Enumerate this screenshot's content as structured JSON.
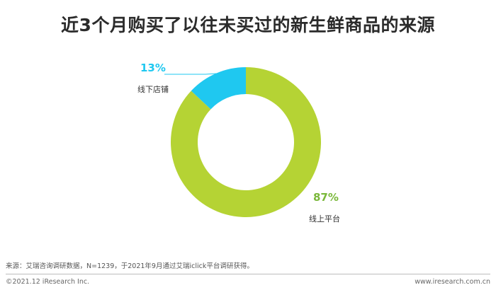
{
  "chart_data": {
    "type": "pie",
    "title": "近3个月购买了以往未买过的新生鲜商品的来源",
    "variant": "donut",
    "slices": [
      {
        "label": "线下店铺",
        "value": 13,
        "display": "13%",
        "color": "#1fc8f0"
      },
      {
        "label": "线上平台",
        "value": 87,
        "display": "87%",
        "color": "#b5d334"
      }
    ]
  },
  "colors": {
    "offline_value_text": "#1fc8f0",
    "online_value_text": "#7ab83a",
    "label_text": "#333333",
    "leader_line": "#1fc8f0"
  },
  "footer": {
    "source": "来源：艾瑞咨询调研数据，N=1239，于2021年9月通过艾瑞iclick平台调研获得。",
    "copyright": "©2021.12 iResearch Inc.",
    "website": "www.iresearch.com.cn"
  }
}
